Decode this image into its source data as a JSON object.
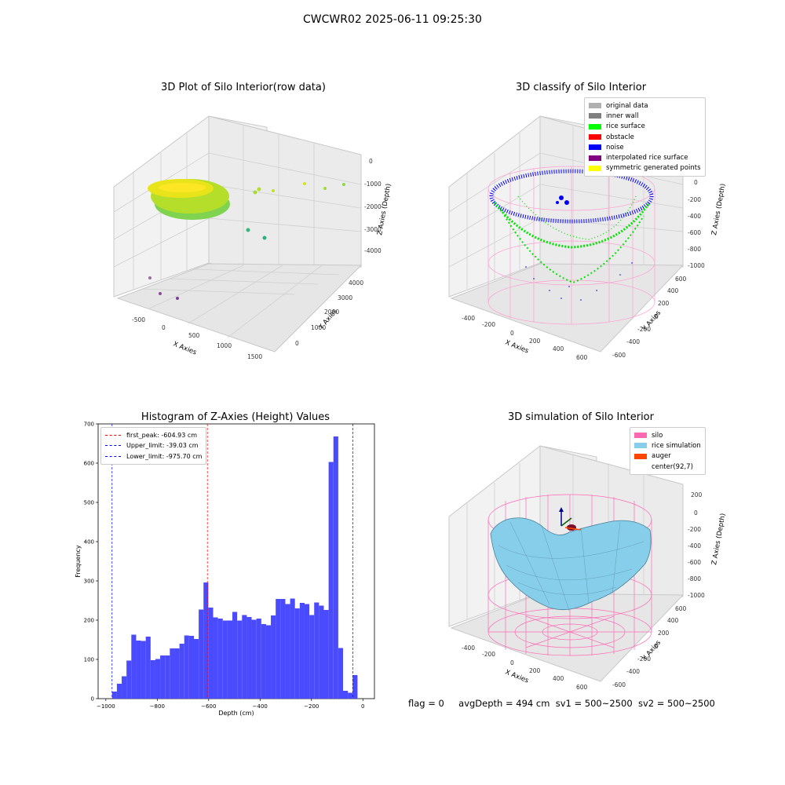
{
  "figure": {
    "title": "CWCWR02 2025-06-11 09:25:30",
    "footer": {
      "flag": "flag = 0",
      "avg_depth": "avgDepth = 494 cm",
      "sv1": "sv1 = 500~2500",
      "sv2": "sv2 = 500~2500"
    }
  },
  "colors": {
    "silo": "#ff69b4",
    "rice_simulation": "#87ceeb",
    "auger": "#ff4500",
    "noise": "#0000ff",
    "rice_surface": "#00ff00",
    "histogram": "#4a4aff"
  },
  "chart_data": [
    {
      "type": "scatter",
      "projection": "3d",
      "title": "3D Plot of Silo Interior(row data)",
      "xlabel": "X Axies",
      "ylabel": "Y Axies",
      "zlabel": "Z Axies (Depth)",
      "x_ticks": [
        "-500",
        "0",
        "500",
        "1000",
        "1500"
      ],
      "y_ticks": [
        "0",
        "1000",
        "2000",
        "3000",
        "4000"
      ],
      "z_ticks": [
        "0",
        "-1000",
        "-2000",
        "-3000",
        "-4000"
      ],
      "colormap": "viridis (purple to yellow by depth)",
      "points_description": "dense rice-surface cluster plus sparse outliers"
    },
    {
      "type": "scatter",
      "projection": "3d",
      "title": "3D classify of Silo Interior",
      "xlabel": "X Axies",
      "ylabel": "Y Axies",
      "zlabel": "Z Axies (Depth)",
      "x_ticks": [
        "-400",
        "-200",
        "0",
        "200",
        "400",
        "600"
      ],
      "y_ticks": [
        "-600",
        "-400",
        "-200",
        "0",
        "200",
        "400",
        "600"
      ],
      "z_ticks": [
        "200",
        "0",
        "-200",
        "-400",
        "-600",
        "-800",
        "-1000"
      ],
      "legend": [
        {
          "label": "original data",
          "color": "#b0b0b0"
        },
        {
          "label": "inner wall",
          "color": "#808080"
        },
        {
          "label": "rice surface",
          "color": "#00ff00"
        },
        {
          "label": "obstacle",
          "color": "#ff0000"
        },
        {
          "label": "noise",
          "color": "#0000ff"
        },
        {
          "label": "interpolated rice surface",
          "color": "#800080"
        },
        {
          "label": "symmetric generated points",
          "color": "#ffff00"
        }
      ]
    },
    {
      "type": "bar",
      "title": "Histogram of Z-Axies (Height) Values",
      "xlabel": "Depth (cm)",
      "ylabel": "Frequency",
      "xlim": [
        -1030,
        45
      ],
      "ylim": [
        0,
        700
      ],
      "x_ticks": [
        -1000,
        -800,
        -600,
        -400,
        -200,
        0
      ],
      "y_ticks": [
        0,
        100,
        200,
        300,
        400,
        500,
        600,
        700
      ],
      "bin_start": -975.7,
      "bin_width": 18.72,
      "values": [
        18,
        38,
        57,
        97,
        163,
        148,
        147,
        158,
        98,
        101,
        110,
        110,
        128,
        128,
        140,
        161,
        160,
        152,
        227,
        296,
        232,
        207,
        204,
        199,
        199,
        221,
        199,
        213,
        208,
        201,
        204,
        190,
        187,
        212,
        254,
        254,
        241,
        255,
        230,
        244,
        241,
        213,
        245,
        237,
        226,
        603,
        668,
        129,
        20,
        15,
        60
      ],
      "lines": [
        {
          "label": "first_peak: -604.93 cm",
          "x": -604.93,
          "color": "#ff0000"
        },
        {
          "label": "Upper_limit: -39.03 cm",
          "x": -39.03,
          "color": "#0000ff"
        },
        {
          "label": "Lower_limit: -975.70 cm",
          "x": -975.7,
          "color": "#0000ff"
        }
      ]
    },
    {
      "type": "area",
      "projection": "3d",
      "title": "3D simulation of Silo Interior",
      "xlabel": "X Axies",
      "ylabel": "Y Axies",
      "zlabel": "Z Axies (Depth)",
      "x_ticks": [
        "-400",
        "-200",
        "0",
        "200",
        "400",
        "600"
      ],
      "y_ticks": [
        "-600",
        "-400",
        "-200",
        "0",
        "200",
        "400",
        "600"
      ],
      "z_ticks": [
        "200",
        "0",
        "-200",
        "-400",
        "-600",
        "-800",
        "-1000"
      ],
      "legend": [
        {
          "label": "silo",
          "color": "#ff69b4"
        },
        {
          "label": "rice simulation",
          "color": "#87ceeb"
        },
        {
          "label": "auger",
          "color": "#ff4500"
        },
        {
          "label": "center(92,7)",
          "color": ""
        }
      ]
    }
  ]
}
